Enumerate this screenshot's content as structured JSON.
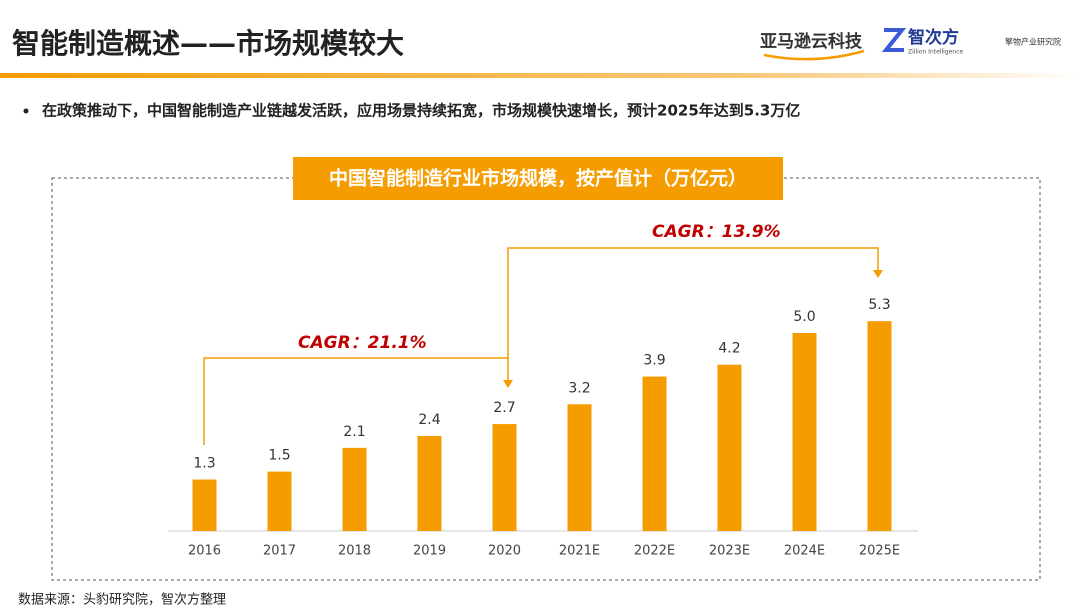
{
  "header": {
    "title": "智能制造概述——市场规模较大",
    "logos": [
      "亚马逊云科技",
      "智次方",
      "Zillion Intelligence",
      "擎物产业研究院"
    ]
  },
  "bullet": "在政策推动下，中国智能制造产业链越发活跃，应用场景持续拓宽，市场规模快速增长，预计2025年达到5.3万亿",
  "chart_data": {
    "type": "bar",
    "title": "中国智能制造行业市场规模，按产值计（万亿元）",
    "categories": [
      "2016",
      "2017",
      "2018",
      "2019",
      "2020",
      "2021E",
      "2022E",
      "2023E",
      "2024E",
      "2025E"
    ],
    "values": [
      1.3,
      1.5,
      2.1,
      2.4,
      2.7,
      3.2,
      3.9,
      4.2,
      5.0,
      5.3
    ],
    "value_labels": [
      "1.3",
      "1.5",
      "2.1",
      "2.4",
      "2.7",
      "3.2",
      "3.9",
      "4.2",
      "5.0",
      "5.3"
    ],
    "color": "#f59c00",
    "annotations": [
      "CAGR：21.1%",
      "CAGR：13.9%"
    ]
  },
  "source": "数据来源：头豹研究院，智次方整理"
}
